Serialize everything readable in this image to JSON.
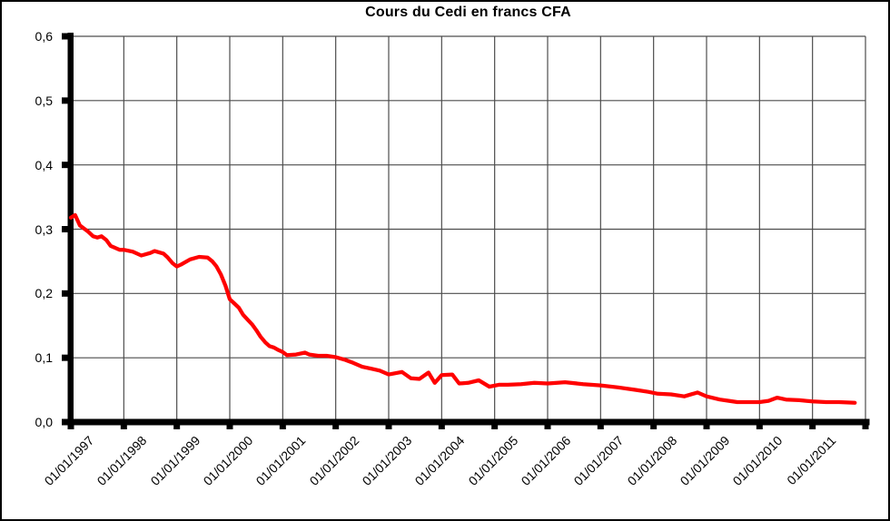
{
  "title": "Cours du Cedi en francs CFA",
  "colors": {
    "series": "#ff0000",
    "grid": "#4d4d4d",
    "axis": "#000000",
    "background": "#ffffff",
    "text": "#000000"
  },
  "chart_data": {
    "type": "line",
    "title": "Cours du Cedi en francs CFA",
    "xlabel": "",
    "ylabel": "",
    "xlim": [
      1997,
      2012
    ],
    "ylim": [
      0,
      0.6
    ],
    "grid": true,
    "legend": "none",
    "y_tick_labels": [
      "0,0",
      "0,1",
      "0,2",
      "0,3",
      "0,4",
      "0,5",
      "0,6"
    ],
    "x_tick_labels": [
      "01/01/1997",
      "01/01/1998",
      "01/01/1999",
      "01/01/2000",
      "01/01/2001",
      "01/01/2002",
      "01/01/2003",
      "01/01/2004",
      "01/01/2005",
      "01/01/2006",
      "01/01/2007",
      "01/01/2008",
      "01/01/2009",
      "01/01/2010",
      "01/01/2011"
    ],
    "series": [
      {
        "name": "Cours du Cedi en francs CFA",
        "color": "#ff0000",
        "points": [
          [
            1997.0,
            0.318
          ],
          [
            1997.08,
            0.322
          ],
          [
            1997.17,
            0.306
          ],
          [
            1997.33,
            0.296
          ],
          [
            1997.42,
            0.289
          ],
          [
            1997.5,
            0.287
          ],
          [
            1997.58,
            0.289
          ],
          [
            1997.67,
            0.283
          ],
          [
            1997.75,
            0.274
          ],
          [
            1997.92,
            0.268
          ],
          [
            1998.0,
            0.268
          ],
          [
            1998.17,
            0.265
          ],
          [
            1998.33,
            0.259
          ],
          [
            1998.5,
            0.263
          ],
          [
            1998.58,
            0.266
          ],
          [
            1998.75,
            0.262
          ],
          [
            1998.83,
            0.256
          ],
          [
            1998.92,
            0.247
          ],
          [
            1999.0,
            0.242
          ],
          [
            1999.08,
            0.245
          ],
          [
            1999.25,
            0.253
          ],
          [
            1999.42,
            0.257
          ],
          [
            1999.58,
            0.256
          ],
          [
            1999.67,
            0.25
          ],
          [
            1999.75,
            0.242
          ],
          [
            1999.83,
            0.23
          ],
          [
            1999.92,
            0.212
          ],
          [
            2000.0,
            0.191
          ],
          [
            2000.08,
            0.185
          ],
          [
            2000.17,
            0.178
          ],
          [
            2000.25,
            0.167
          ],
          [
            2000.33,
            0.16
          ],
          [
            2000.42,
            0.152
          ],
          [
            2000.5,
            0.143
          ],
          [
            2000.58,
            0.133
          ],
          [
            2000.67,
            0.124
          ],
          [
            2000.75,
            0.118
          ],
          [
            2000.83,
            0.116
          ],
          [
            2000.92,
            0.112
          ],
          [
            2001.0,
            0.109
          ],
          [
            2001.08,
            0.104
          ],
          [
            2001.25,
            0.105
          ],
          [
            2001.42,
            0.108
          ],
          [
            2001.5,
            0.105
          ],
          [
            2001.67,
            0.103
          ],
          [
            2001.83,
            0.103
          ],
          [
            2002.0,
            0.101
          ],
          [
            2002.17,
            0.097
          ],
          [
            2002.33,
            0.092
          ],
          [
            2002.5,
            0.086
          ],
          [
            2002.67,
            0.083
          ],
          [
            2002.83,
            0.08
          ],
          [
            2003.0,
            0.074
          ],
          [
            2003.25,
            0.078
          ],
          [
            2003.42,
            0.068
          ],
          [
            2003.58,
            0.067
          ],
          [
            2003.75,
            0.077
          ],
          [
            2003.87,
            0.061
          ],
          [
            2004.0,
            0.073
          ],
          [
            2004.2,
            0.074
          ],
          [
            2004.33,
            0.06
          ],
          [
            2004.5,
            0.061
          ],
          [
            2004.7,
            0.065
          ],
          [
            2004.9,
            0.055
          ],
          [
            2005.08,
            0.058
          ],
          [
            2005.25,
            0.058
          ],
          [
            2005.5,
            0.059
          ],
          [
            2005.75,
            0.061
          ],
          [
            2006.0,
            0.06
          ],
          [
            2006.33,
            0.062
          ],
          [
            2006.67,
            0.059
          ],
          [
            2007.0,
            0.057
          ],
          [
            2007.33,
            0.054
          ],
          [
            2007.67,
            0.05
          ],
          [
            2007.9,
            0.047
          ],
          [
            2008.08,
            0.044
          ],
          [
            2008.33,
            0.043
          ],
          [
            2008.58,
            0.04
          ],
          [
            2008.83,
            0.046
          ],
          [
            2009.0,
            0.04
          ],
          [
            2009.25,
            0.035
          ],
          [
            2009.42,
            0.033
          ],
          [
            2009.58,
            0.031
          ],
          [
            2009.83,
            0.031
          ],
          [
            2010.0,
            0.031
          ],
          [
            2010.17,
            0.033
          ],
          [
            2010.33,
            0.038
          ],
          [
            2010.5,
            0.035
          ],
          [
            2010.75,
            0.034
          ],
          [
            2011.0,
            0.032
          ],
          [
            2011.25,
            0.031
          ],
          [
            2011.5,
            0.031
          ],
          [
            2011.8,
            0.03
          ]
        ]
      }
    ]
  }
}
